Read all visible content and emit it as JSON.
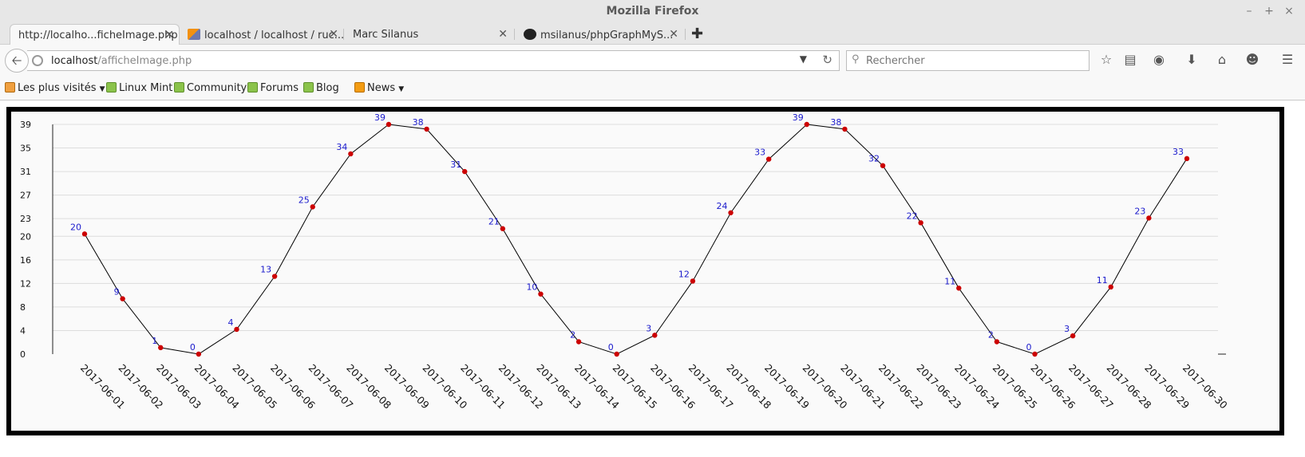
{
  "window": {
    "title": "Mozilla Firefox"
  },
  "tabs": [
    {
      "label": "http://localho...ficheImage.php",
      "active": true
    },
    {
      "label": "localhost / localhost / ruc...",
      "icon": "phpmyadmin-icon"
    },
    {
      "label": "Marc Silanus"
    },
    {
      "label": "msilanus/phpGraphMyS...",
      "icon": "github-icon"
    }
  ],
  "navbar": {
    "url_host": "localhost",
    "url_path": "/afficheImage.php",
    "search_placeholder": "Rechercher"
  },
  "bookmarks": [
    {
      "label": "Les plus visités",
      "icon": "most-visited-icon",
      "dropdown": true
    },
    {
      "label": "Linux Mint",
      "icon": "mint-icon"
    },
    {
      "label": "Community",
      "icon": "mint-icon"
    },
    {
      "label": "Forums",
      "icon": "mint-icon"
    },
    {
      "label": "Blog",
      "icon": "mint-icon"
    },
    {
      "label": "News",
      "icon": "rss-icon",
      "dropdown": true
    }
  ],
  "chart_data": {
    "type": "line",
    "title": "",
    "xlabel": "",
    "ylabel": "",
    "ylim": [
      0,
      39
    ],
    "yticks": [
      0,
      4,
      8,
      12,
      16,
      20,
      23,
      27,
      31,
      35,
      39
    ],
    "grid": true,
    "line_color": "#000000",
    "marker_color": "#cc0000",
    "label_color": "#1a1acc",
    "x": [
      "2017-06-01",
      "2017-06-02",
      "2017-06-03",
      "2017-06-04",
      "2017-06-05",
      "2017-06-06",
      "2017-06-07",
      "2017-06-08",
      "2017-06-09",
      "2017-06-10",
      "2017-06-11",
      "2017-06-12",
      "2017-06-13",
      "2017-06-14",
      "2017-06-15",
      "2017-06-16",
      "2017-06-17",
      "2017-06-18",
      "2017-06-19",
      "2017-06-20",
      "2017-06-21",
      "2017-06-22",
      "2017-06-23",
      "2017-06-24",
      "2017-06-25",
      "2017-06-26",
      "2017-06-27",
      "2017-06-28",
      "2017-06-29",
      "2017-06-30"
    ],
    "values": [
      20.4,
      9.4,
      1.1,
      0,
      4.2,
      13.2,
      25,
      34,
      39,
      38.2,
      31,
      21.3,
      10.2,
      2.1,
      0,
      3.2,
      12.4,
      24,
      33.1,
      39,
      38.2,
      32,
      22.3,
      11.2,
      2.1,
      0,
      3.1,
      11.4,
      23.1,
      33.2
    ],
    "data_labels": [
      "20",
      "9",
      "1",
      "0",
      "4",
      "13",
      "25",
      "34",
      "39",
      "38",
      "31",
      "21",
      "10",
      "2",
      "0",
      "3",
      "12",
      "24",
      "33",
      "39",
      "38",
      "32",
      "22",
      "11",
      "2",
      "0",
      "3",
      "11",
      "23",
      "33"
    ]
  }
}
